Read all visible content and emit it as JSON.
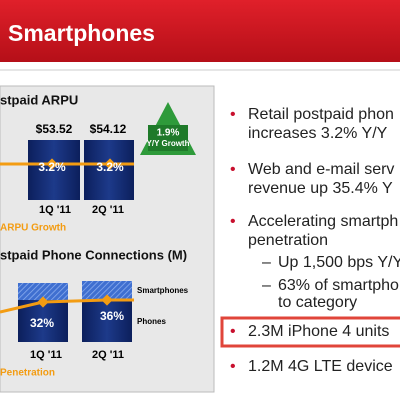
{
  "header": {
    "title": "Smartphones"
  },
  "arpu_panel": {
    "title": "stpaid ARPU",
    "values": [
      "$53.52",
      "$54.12"
    ],
    "growth_values": [
      "3.2%",
      "3.2%"
    ],
    "periods": [
      "1Q '11",
      "2Q '11"
    ],
    "badge_value": "1.9%",
    "badge_label": "Y/Y Growth",
    "legend": "ARPU Growth"
  },
  "connections_panel": {
    "title": "stpaid Phone Connections (M)",
    "penetration_values": [
      "32%",
      "36%"
    ],
    "periods": [
      "1Q '11",
      "2Q '11"
    ],
    "segment_labels": [
      "Smartphones",
      "Phones"
    ],
    "legend": "Penetration"
  },
  "bullets": [
    {
      "lines": [
        "Retail postpaid phon",
        "increases 3.2% Y/Y"
      ]
    },
    {
      "lines": [
        "Web and e-mail serv",
        "revenue up 35.4% Y"
      ]
    },
    {
      "lines": [
        "Accelerating smartph",
        "penetration"
      ],
      "sub": [
        {
          "lines": [
            "Up 1,500 bps Y/Y"
          ]
        },
        {
          "lines": [
            "63% of smartphon",
            "to category"
          ]
        }
      ]
    },
    {
      "lines": [
        "2.3M iPhone 4 units"
      ],
      "highlighted": true
    },
    {
      "lines": [
        "1.2M 4G LTE device"
      ]
    }
  ]
}
